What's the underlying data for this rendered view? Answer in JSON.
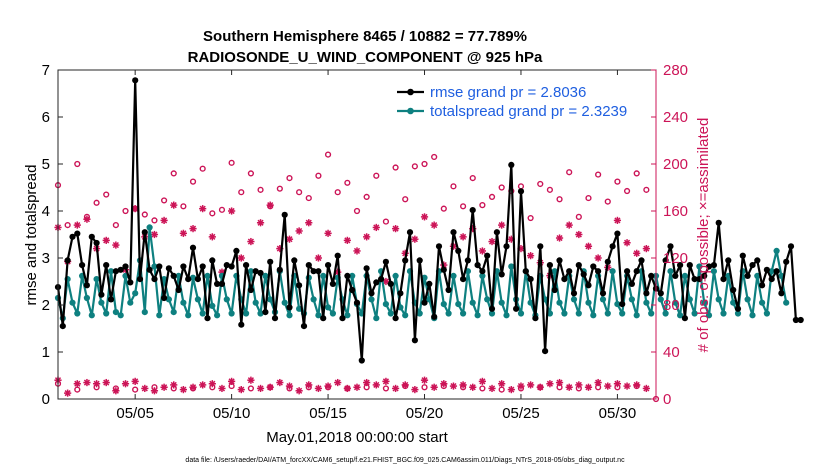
{
  "chart_data": {
    "type": "line",
    "title_line1": "Southern Hemisphere 8465 / 10882 = 77.789%",
    "title_line2": "RADIOSONDE_U_WIND_COMPONENT @ 925 hPa",
    "xlabel": "May.01,2018 00:00:00 start",
    "ylabel_left": "rmse and totalspread",
    "ylabel_right": "# of obs: o=possible; ×=assimilated",
    "xlim": [
      1,
      32
    ],
    "ylim_left": [
      0,
      7
    ],
    "ylim_right": [
      0,
      280
    ],
    "x_ticks": [
      5,
      10,
      15,
      20,
      25,
      30
    ],
    "x_tick_labels": [
      "05/05",
      "05/10",
      "05/15",
      "05/20",
      "05/25",
      "05/30"
    ],
    "y_ticks_left": [
      "0",
      "1",
      "2",
      "3",
      "4",
      "5",
      "6",
      "7"
    ],
    "y_ticks_right": [
      "0",
      "40",
      "80",
      "120",
      "160",
      "200",
      "240",
      "280"
    ],
    "footnote": "data file: /Users/raeder/DAI/ATM_forcXX/CAM6_setup/f.e21.FHIST_BGC.f09_025.CAM6assim.011/Diags_NTrS_2018-05/obs_diag_output.nc",
    "colors": {
      "rmse": "#000000",
      "spread": "#0e8080",
      "obs": "#cc1457"
    },
    "series": [
      {
        "name": "rmse",
        "legend": "rmse grand pr = 2.8036",
        "x_start": 1,
        "x_step": 0.25,
        "values": [
          2.38,
          1.55,
          2.95,
          3.45,
          3.52,
          2.85,
          2.42,
          3.45,
          3.32,
          2.22,
          2.85,
          2.12,
          2.72,
          2.75,
          2.82,
          2.48,
          6.78,
          2.55,
          3.55,
          2.75,
          2.55,
          2.82,
          2.15,
          2.78,
          2.62,
          2.32,
          2.82,
          2.55,
          3.22,
          2.55,
          2.82,
          1.72,
          2.95,
          2.45,
          2.45,
          2.85,
          2.82,
          3.15,
          1.58,
          2.85,
          2.32,
          2.72,
          2.68,
          1.85,
          2.92,
          1.72,
          2.75,
          3.92,
          1.95,
          2.95,
          2.42,
          1.55,
          2.85,
          2.72,
          2.72,
          1.72,
          2.85,
          2.45,
          3.05,
          1.72,
          2.62,
          2.32,
          2.05,
          0.82,
          2.78,
          2.25,
          2.48,
          2.55,
          2.92,
          2.45,
          1.72,
          2.25,
          2.95,
          3.55,
          1.25,
          2.95,
          2.05,
          2.45,
          1.75,
          3.25,
          2.75,
          2.32,
          3.55,
          3.15,
          2.55,
          2.95,
          4.02,
          2.85,
          2.72,
          3.05,
          1.92,
          3.55,
          2.65,
          3.25,
          4.98,
          1.92,
          4.42,
          2.72,
          2.55,
          1.72,
          3.25,
          1.02,
          2.85,
          2.32,
          2.95,
          2.55,
          2.72,
          2.25,
          2.85,
          2.65,
          2.42,
          2.82,
          2.72,
          2.25,
          2.92,
          3.25,
          3.52,
          2.02,
          2.72,
          2.45,
          2.72,
          2.95,
          2.25,
          2.62,
          2.35,
          2.25,
          2.95,
          3.25,
          2.62,
          2.85,
          1.72,
          2.85,
          2.55,
          2.55,
          2.62,
          2.82,
          2.85,
          3.75,
          2.55,
          2.95,
          2.32,
          1.92,
          3.05,
          2.62,
          2.85,
          2.95,
          2.42,
          2.75,
          2.55,
          2.72,
          2.25,
          2.92,
          3.25,
          1.68,
          1.68
        ]
      },
      {
        "name": "totalspread",
        "legend": "totalspread grand pr = 2.3239",
        "x_start": 1,
        "x_step": 0.25,
        "values": [
          2.15,
          1.72,
          2.55,
          2.05,
          1.82,
          2.62,
          2.15,
          1.78,
          2.55,
          2.05,
          1.82,
          2.72,
          1.85,
          1.78,
          2.62,
          2.05,
          2.25,
          2.95,
          1.85,
          3.65,
          2.82,
          1.78,
          2.55,
          2.12,
          1.85,
          2.62,
          2.05,
          1.78,
          2.58,
          2.12,
          1.82,
          2.62,
          1.98,
          1.78,
          2.62,
          2.12,
          1.82,
          2.62,
          2.12,
          1.82,
          2.72,
          2.05,
          1.82,
          2.62,
          2.12,
          1.85,
          2.72,
          2.05,
          1.78,
          2.62,
          1.92,
          1.82,
          2.58,
          2.12,
          1.78,
          2.62,
          1.95,
          1.82,
          2.58,
          2.12,
          1.78,
          2.62,
          2.02,
          1.82,
          2.62,
          2.12,
          1.72,
          2.72,
          2.02,
          1.82,
          2.62,
          1.95,
          1.78,
          2.72,
          2.05,
          1.82,
          2.58,
          2.12,
          1.72,
          2.72,
          2.02,
          1.82,
          2.62,
          2.02,
          1.82,
          2.72,
          2.05,
          1.78,
          2.62,
          2.12,
          1.82,
          2.72,
          2.05,
          1.78,
          2.82,
          2.12,
          1.82,
          2.72,
          2.05,
          1.78,
          2.62,
          2.12,
          1.82,
          2.72,
          2.05,
          1.82,
          2.62,
          2.12,
          1.82,
          2.72,
          2.05,
          1.78,
          2.62,
          2.12,
          1.82,
          2.72,
          2.02,
          1.82,
          2.62,
          2.12,
          1.78,
          2.72,
          2.05,
          1.82,
          2.62,
          2.12,
          1.82,
          2.72,
          2.05,
          1.78,
          2.62,
          2.12,
          1.82,
          2.82,
          2.05,
          1.78,
          2.72,
          2.12,
          1.82,
          2.62,
          2.05,
          1.82,
          2.72,
          2.12,
          1.78,
          2.62,
          2.05,
          1.82,
          2.72,
          3.15,
          2.62,
          2.05
        ]
      },
      {
        "name": "obs_possible",
        "marker": "o",
        "x": [
          1,
          1.5,
          2,
          2.5,
          3,
          3.5,
          4,
          4.5,
          5,
          5.5,
          6,
          6.5,
          7,
          7.5,
          8,
          8.5,
          9,
          9.5,
          10,
          10.5,
          11,
          11.5,
          12,
          12.5,
          13,
          13.5,
          14,
          14.5,
          15,
          15.5,
          16,
          16.5,
          17,
          17.5,
          18,
          18.5,
          19,
          19.5,
          20,
          20.5,
          21,
          21.5,
          22,
          22.5,
          23,
          23.5,
          24,
          24.5,
          25,
          25.5,
          26,
          26.5,
          27,
          27.5,
          28,
          28.5,
          29,
          29.5,
          30,
          30.5,
          31,
          31.5
        ],
        "values": [
          182,
          148,
          200,
          155,
          167,
          174,
          148,
          160,
          162,
          157,
          152,
          169,
          192,
          164,
          185,
          196,
          158,
          161,
          201,
          176,
          192,
          178,
          164,
          179,
          188,
          176,
          171,
          190,
          208,
          176,
          184,
          160,
          172,
          190,
          151,
          197,
          170,
          198,
          200,
          206,
          162,
          181,
          164,
          188,
          165,
          172,
          180,
          177,
          181,
          154,
          183,
          178,
          170,
          193,
          155,
          171,
          191,
          168,
          185,
          177,
          192,
          178
        ]
      },
      {
        "name": "obs_assimilated",
        "marker": "*",
        "x": [
          1,
          1.5,
          2,
          2.5,
          3,
          3.5,
          4,
          4.5,
          5,
          5.5,
          6,
          6.5,
          7,
          7.5,
          8,
          8.5,
          9,
          9.5,
          10,
          10.5,
          11,
          11.5,
          12,
          12.5,
          13,
          13.5,
          14,
          14.5,
          15,
          15.5,
          16,
          16.5,
          17,
          17.5,
          18,
          18.5,
          19,
          19.5,
          20,
          20.5,
          21,
          21.5,
          22,
          22.5,
          23,
          23.5,
          24,
          24.5,
          25,
          25.5,
          26,
          26.5,
          27,
          27.5,
          28,
          28.5,
          29,
          29.5,
          30,
          30.5,
          31,
          31.5
        ],
        "values": [
          146,
          117,
          148,
          153,
          128,
          135,
          131,
          110,
          162,
          138,
          140,
          152,
          165,
          141,
          145,
          162,
          138,
          108,
          160,
          120,
          134,
          150,
          165,
          128,
          136,
          143,
          150,
          120,
          141,
          108,
          135,
          126,
          138,
          146,
          100,
          145,
          124,
          136,
          155,
          148,
          114,
          130,
          138,
          145,
          126,
          134,
          148,
          136,
          128,
          122,
          116,
          105,
          137,
          148,
          140,
          130,
          120,
          112,
          152,
          133,
          124,
          128
        ]
      },
      {
        "name": "obs_possible_low",
        "marker": "o",
        "x": [
          1,
          2,
          3,
          4,
          5,
          6,
          7,
          8,
          9,
          10,
          11,
          12,
          13,
          14,
          15,
          16,
          17,
          18,
          19,
          20,
          21,
          22,
          23,
          24,
          25,
          26,
          27,
          28,
          29,
          30,
          31,
          32
        ],
        "values": [
          13,
          8,
          10,
          9,
          8,
          10,
          9,
          9,
          10,
          11,
          9,
          10,
          9,
          10,
          10,
          9,
          10,
          9,
          11,
          10,
          11,
          10,
          9,
          8,
          9,
          10,
          10,
          9,
          10,
          10,
          11,
          0
        ]
      },
      {
        "name": "obs_assimilated_low",
        "marker": "*",
        "x": [
          1,
          1.5,
          2,
          2.5,
          3,
          3.5,
          4,
          4.5,
          5,
          5.5,
          6,
          6.5,
          7,
          7.5,
          8,
          8.5,
          9,
          9.5,
          10,
          10.5,
          11,
          11.5,
          12,
          12.5,
          13,
          13.5,
          14,
          14.5,
          15,
          15.5,
          16,
          16.5,
          17,
          17.5,
          18,
          18.5,
          19,
          19.5,
          20,
          20.5,
          21,
          21.5,
          22,
          22.5,
          23,
          23.5,
          24,
          24.5,
          25,
          25.5,
          26,
          26.5,
          27,
          27.5,
          28,
          28.5,
          29,
          29.5,
          30,
          30.5,
          31,
          31.5
        ],
        "values": [
          16,
          5,
          13,
          14,
          13,
          14,
          7,
          13,
          15,
          9,
          7,
          10,
          12,
          8,
          10,
          12,
          13,
          9,
          15,
          8,
          16,
          9,
          10,
          14,
          11,
          7,
          12,
          9,
          11,
          14,
          9,
          10,
          14,
          12,
          15,
          9,
          12,
          8,
          16,
          10,
          13,
          11,
          12,
          10,
          15,
          9,
          13,
          8,
          11,
          12,
          10,
          13,
          14,
          10,
          12,
          10,
          14,
          11,
          13,
          11,
          12,
          9
        ]
      }
    ]
  }
}
